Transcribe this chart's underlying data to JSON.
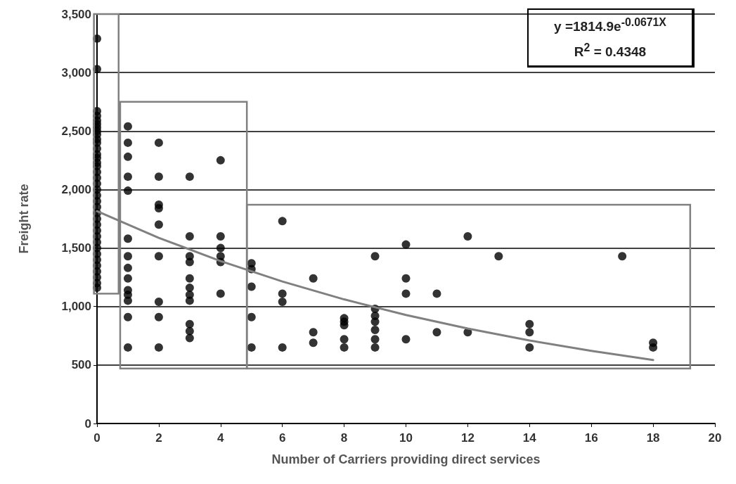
{
  "chart_data": {
    "type": "scatter",
    "xlabel": "Number of Carriers providing direct services",
    "ylabel": "Freight rate",
    "annotations": [
      "y =1814.9e$^{-0.0671X}$",
      "R$^{2}$ = 0.4348"
    ],
    "xlim": [
      0,
      20
    ],
    "xticks": [
      0,
      2,
      4,
      6,
      8,
      10,
      12,
      14,
      16,
      18,
      20
    ],
    "ylim": [
      0,
      3500
    ],
    "yticks": [
      0,
      500,
      {
        "value": 1000,
        "label": "1,000"
      },
      {
        "value": 1500,
        "label": "1,500"
      },
      {
        "value": 2000,
        "label": "2,000"
      },
      {
        "value": 2500,
        "label": "2,500"
      },
      {
        "value": 3000,
        "label": "3,000"
      },
      {
        "value": 3500,
        "label": "3,500"
      }
    ],
    "grid": "y",
    "marker": "circle",
    "series": [
      {
        "color": "#000000",
        "x": [
          0,
          0,
          0,
          0,
          0,
          0,
          0,
          0,
          0,
          0,
          0,
          0,
          0,
          0,
          0,
          0,
          0,
          0,
          0,
          0,
          0,
          0,
          0,
          0,
          0,
          0,
          0,
          0,
          0,
          0,
          0,
          0,
          0,
          0,
          0,
          0,
          0,
          1,
          1,
          1,
          1,
          1,
          1,
          1,
          1,
          1,
          1,
          1,
          1,
          1,
          1,
          2,
          2,
          2,
          2,
          2,
          2,
          2,
          2,
          2,
          3,
          3,
          3,
          3,
          3,
          3,
          3,
          3,
          3,
          3,
          3,
          4,
          4,
          4,
          4,
          4,
          4,
          5,
          5,
          5,
          5,
          5,
          6,
          6,
          6,
          6,
          7,
          7,
          7,
          8,
          8,
          8,
          8,
          8,
          9,
          9,
          9,
          9,
          9,
          9,
          9,
          10,
          10,
          10,
          10,
          11,
          11,
          12,
          12,
          13,
          14,
          14,
          14,
          17,
          18,
          18
        ],
        "values": [
          3290,
          3030,
          2670,
          2630,
          2590,
          2560,
          2530,
          2500,
          2470,
          2430,
          2400,
          2350,
          2300,
          2270,
          2230,
          2200,
          2150,
          2100,
          2050,
          2000,
          1950,
          1900,
          1850,
          1800,
          1750,
          1700,
          1650,
          1600,
          1550,
          1500,
          1450,
          1400,
          1350,
          1300,
          1250,
          1200,
          1160,
          2540,
          2400,
          2280,
          2110,
          1990,
          1580,
          1430,
          1330,
          1240,
          1140,
          1100,
          1050,
          910,
          650,
          2400,
          2110,
          1870,
          1840,
          1700,
          1430,
          1040,
          910,
          650,
          2110,
          1600,
          1430,
          1380,
          1240,
          1160,
          1100,
          1050,
          850,
          790,
          730,
          2250,
          1600,
          1500,
          1430,
          1380,
          1110,
          1370,
          1320,
          1170,
          910,
          650,
          1730,
          1110,
          1040,
          650,
          1240,
          780,
          690,
          900,
          870,
          840,
          720,
          650,
          1430,
          980,
          920,
          870,
          800,
          720,
          650,
          1530,
          1240,
          1110,
          720,
          1110,
          780,
          1600,
          780,
          1430,
          850,
          780,
          650,
          1430,
          690,
          650
        ]
      },
      {
        "type": "line",
        "color": "#808080",
        "marker": "none",
        "line_style": "solid",
        "x": [
          0,
          2,
          4,
          6,
          8,
          10,
          12,
          14,
          16,
          18
        ],
        "values": [
          1815,
          1587,
          1388,
          1214,
          1061,
          928,
          812,
          710,
          621,
          543
        ]
      }
    ]
  }
}
